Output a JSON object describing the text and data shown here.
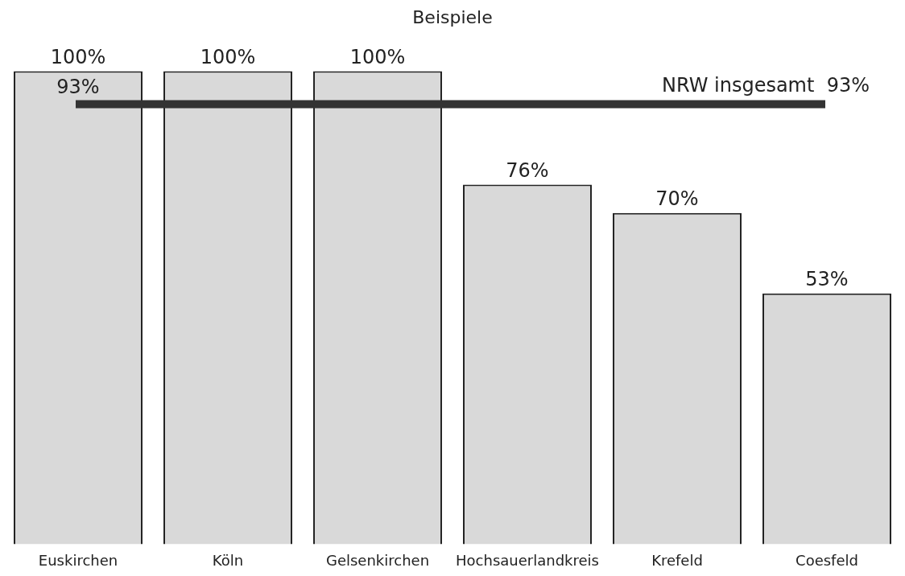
{
  "chart_data": {
    "type": "bar",
    "title": "Beispiele",
    "categories": [
      "Euskirchen",
      "Köln",
      "Gelsenkirchen",
      "Hochsauerlandkreis",
      "Krefeld",
      "Coesfeld"
    ],
    "values": [
      100,
      100,
      100,
      76,
      70,
      53
    ],
    "value_labels": [
      "100%",
      "100%",
      "100%",
      "76%",
      "70%",
      "53%"
    ],
    "color": "#d9d9d9",
    "grid": false,
    "legend": false,
    "ref_lines": [
      {
        "axis": "y",
        "value": 93,
        "label": "NRW insgesamt  93%",
        "color": "#333333"
      }
    ],
    "annotations": [
      {
        "text": "93%",
        "x": "Euskirchen",
        "y": 93
      }
    ]
  }
}
